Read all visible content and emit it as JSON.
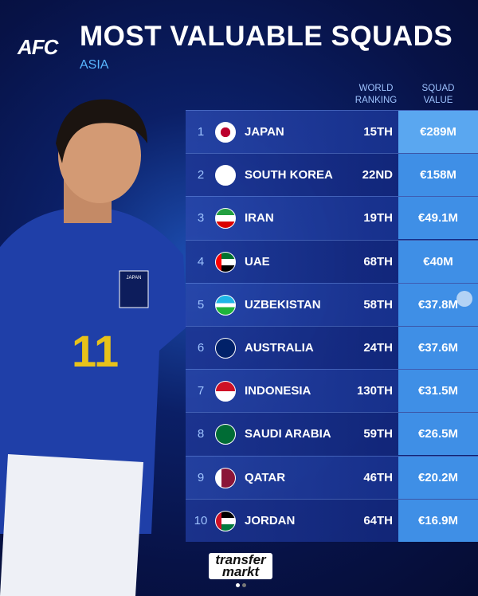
{
  "header": {
    "logo": "AFC",
    "title": "MOST VALUABLE SQUADS",
    "subtitle": "ASIA"
  },
  "table": {
    "columns": [
      "WORLD RANKING",
      "SQUAD VALUE"
    ],
    "rows": [
      [
        "1",
        "JAPAN",
        "15TH",
        "€289M"
      ],
      [
        "2",
        "SOUTH KOREA",
        "22ND",
        "€158M"
      ],
      [
        "3",
        "IRAN",
        "19TH",
        "€49.1M"
      ],
      [
        "4",
        "UAE",
        "68TH",
        "€40M"
      ],
      [
        "5",
        "UZBEKISTAN",
        "58TH",
        "€37.8M"
      ],
      [
        "6",
        "AUSTRALIA",
        "24TH",
        "€37.6M"
      ],
      [
        "7",
        "INDONESIA",
        "130TH",
        "€31.5M"
      ],
      [
        "8",
        "SAUDI ARABIA",
        "59TH",
        "€26.5M"
      ],
      [
        "9",
        "QATAR",
        "46TH",
        "€20.2M"
      ],
      [
        "10",
        "JORDAN",
        "64TH",
        "€16.9M"
      ]
    ]
  },
  "player": {
    "jersey_number": "11",
    "crest": "JAPAN"
  },
  "footer": {
    "brand": [
      "transfer",
      "markt"
    ]
  }
}
